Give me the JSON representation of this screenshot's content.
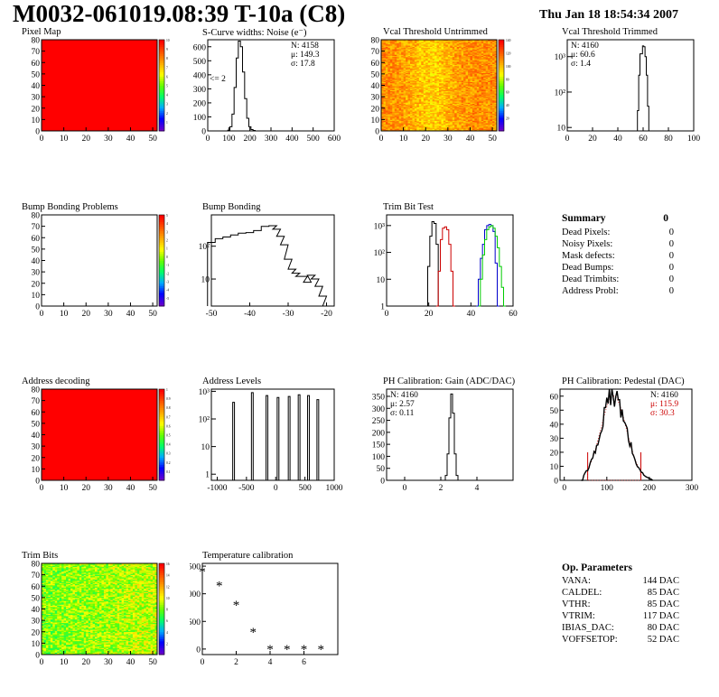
{
  "header": {
    "title": "M0032-061019.08:39 T-10a (C8)",
    "date": "Thu Jan 18 18:54:34 2007"
  },
  "colors": {
    "red": "#ff0000",
    "black": "#000000",
    "dark_red": "#cc0000",
    "blue": "#0000cc",
    "green": "#00cc00"
  },
  "panels": {
    "pixel_map": {
      "title": "Pixel Map"
    },
    "noise": {
      "title": "S-Curve widths: Noise (e⁻)",
      "stats": [
        "N: 4158",
        "μ: 149.3",
        "σ: 17.8"
      ],
      "annotation": "<= 2"
    },
    "vcal_untrimmed": {
      "title": "Vcal Threshold Untrimmed"
    },
    "vcal_trimmed": {
      "title": "Vcal Threshold Trimmed",
      "stats": [
        "N: 4160",
        "μ: 60.6",
        "σ:  1.4"
      ]
    },
    "bump_problems": {
      "title": "Bump Bonding Problems"
    },
    "bump_bonding": {
      "title": "Bump Bonding"
    },
    "trim_bit_test": {
      "title": "Trim Bit Test"
    },
    "address_decoding": {
      "title": "Address decoding"
    },
    "address_levels": {
      "title": "Address Levels"
    },
    "ph_gain": {
      "title": "PH Calibration: Gain (ADC/DAC)",
      "stats": [
        "N: 4160",
        "μ: 2.57",
        "σ: 0.11"
      ]
    },
    "ph_pedestal": {
      "title": "PH Calibration: Pedestal (DAC)",
      "stats": [
        "N: 4160",
        "μ: 115.9",
        "σ: 30.3"
      ]
    },
    "trim_bits": {
      "title": "Trim Bits"
    },
    "temperature": {
      "title": "Temperature calibration"
    }
  },
  "summary": {
    "title": "Summary",
    "value": "0",
    "rows": [
      {
        "label": "Dead Pixels:",
        "value": "0"
      },
      {
        "label": "Noisy Pixels:",
        "value": "0"
      },
      {
        "label": "Mask defects:",
        "value": "0"
      },
      {
        "label": "Dead Bumps:",
        "value": "0"
      },
      {
        "label": "Dead Trimbits:",
        "value": "0"
      },
      {
        "label": "Address Probl:",
        "value": "0"
      }
    ]
  },
  "op_parameters": {
    "title": "Op. Parameters",
    "rows": [
      {
        "label": "VANA:",
        "value": "144 DAC"
      },
      {
        "label": "CALDEL:",
        "value": "85 DAC"
      },
      {
        "label": "VTHR:",
        "value": "85 DAC"
      },
      {
        "label": "VTRIM:",
        "value": "117 DAC"
      },
      {
        "label": "IBIAS_DAC:",
        "value": "80 DAC"
      },
      {
        "label": "VOFFSETOP:",
        "value": "52 DAC"
      }
    ]
  },
  "chart_data": [
    {
      "id": "pixel_map",
      "type": "heatmap",
      "title": "Pixel Map",
      "xlim": [
        0,
        52
      ],
      "ylim": [
        0,
        80
      ],
      "xticks": [
        "0",
        "10",
        "20",
        "30",
        "40",
        "50"
      ],
      "yticks": [
        "0",
        "10",
        "20",
        "30",
        "40",
        "50",
        "60",
        "70",
        "80"
      ],
      "fill": "uniform red",
      "zmax": 10,
      "palette_ticks": [
        "1",
        "2",
        "3",
        "4",
        "5",
        "6",
        "7",
        "8",
        "9",
        "10"
      ]
    },
    {
      "id": "noise",
      "type": "line",
      "title": "S-Curve widths: Noise (e⁻)",
      "xlim": [
        0,
        600
      ],
      "ylim": [
        0,
        650
      ],
      "xticks": [
        "0",
        "100",
        "200",
        "300",
        "400",
        "500",
        "600"
      ],
      "yticks": [
        "0",
        "100",
        "200",
        "300",
        "400",
        "500",
        "600"
      ],
      "x": [
        90,
        100,
        110,
        120,
        130,
        140,
        150,
        160,
        170,
        180,
        190,
        200,
        210,
        220,
        230
      ],
      "y": [
        0,
        5,
        30,
        120,
        310,
        520,
        640,
        600,
        420,
        230,
        90,
        30,
        10,
        3,
        0
      ]
    },
    {
      "id": "vcal_untrimmed",
      "type": "heatmap",
      "title": "Vcal Threshold Untrimmed",
      "xlim": [
        0,
        52
      ],
      "ylim": [
        0,
        80
      ],
      "xticks": [
        "0",
        "10",
        "20",
        "30",
        "40",
        "50"
      ],
      "yticks": [
        "0",
        "10",
        "20",
        "30",
        "40",
        "50",
        "60",
        "70",
        "80"
      ],
      "zrange": [
        0,
        140
      ],
      "palette_ticks": [
        "20",
        "40",
        "60",
        "80",
        "100",
        "120",
        "140"
      ]
    },
    {
      "id": "vcal_trimmed",
      "type": "line",
      "title": "Vcal Threshold Trimmed",
      "xlim": [
        0,
        100
      ],
      "log_y": true,
      "xticks": [
        "0",
        "20",
        "40",
        "60",
        "80",
        "100"
      ],
      "yticks": [
        "10",
        "10²",
        "10³"
      ],
      "x": [
        55,
        56,
        57,
        58,
        59,
        60,
        61,
        62,
        63,
        64,
        65,
        66
      ],
      "y": [
        0,
        30,
        300,
        1200,
        1200,
        2000,
        1900,
        1000,
        300,
        40,
        5,
        0
      ]
    },
    {
      "id": "bump_problems",
      "type": "heatmap",
      "title": "Bump Bonding Problems",
      "xlim": [
        0,
        52
      ],
      "ylim": [
        0,
        80
      ],
      "xticks": [
        "0",
        "10",
        "20",
        "30",
        "40",
        "50"
      ],
      "yticks": [
        "0",
        "10",
        "20",
        "30",
        "40",
        "50",
        "60",
        "70",
        "80"
      ],
      "fill": "empty",
      "zrange": [
        -5,
        5
      ],
      "palette_ticks": [
        "-5",
        "-4",
        "-3",
        "-2",
        "-1",
        "0",
        "1",
        "2",
        "3",
        "4",
        "5"
      ]
    },
    {
      "id": "bump_bonding",
      "type": "line",
      "title": "Bump Bonding",
      "xlim": [
        -50,
        -18
      ],
      "log_y": true,
      "xticks": [
        "-50",
        "-40",
        "-30",
        "-20"
      ],
      "yticks": [
        "10",
        "10²"
      ],
      "x": [
        -50,
        -48,
        -46,
        -44,
        -42,
        -40,
        -38,
        -36,
        -34,
        -33,
        -32,
        -31,
        -30,
        -29,
        -28,
        -27,
        -26,
        -25,
        -24,
        -23,
        -22,
        -21,
        -20
      ],
      "y": [
        130,
        170,
        190,
        220,
        250,
        260,
        300,
        400,
        420,
        330,
        200,
        110,
        40,
        20,
        15,
        12,
        12,
        8,
        13,
        10,
        6,
        3,
        1
      ]
    },
    {
      "id": "trim_bit_test",
      "type": "line",
      "title": "Trim Bit Test",
      "xlim": [
        0,
        60
      ],
      "log_y": true,
      "xticks": [
        "0",
        "20",
        "40",
        "60"
      ],
      "yticks": [
        "1",
        "10",
        "10²",
        "10³"
      ],
      "series": [
        {
          "color": "#000000",
          "x": [
            19,
            20,
            21,
            22,
            23,
            24,
            25
          ],
          "y": [
            1,
            30,
            400,
            1400,
            1200,
            200,
            1
          ]
        },
        {
          "color": "#cc0000",
          "x": [
            24,
            25,
            26,
            27,
            28,
            29,
            30,
            31,
            32
          ],
          "y": [
            1,
            20,
            300,
            800,
            900,
            700,
            200,
            20,
            1
          ]
        },
        {
          "color": "#0000cc",
          "x": [
            43,
            44,
            45,
            46,
            47,
            48,
            49,
            50,
            51,
            52,
            53
          ],
          "y": [
            1,
            10,
            60,
            200,
            700,
            1000,
            1100,
            1000,
            600,
            40,
            1
          ]
        },
        {
          "color": "#00cc00",
          "x": [
            44,
            45,
            46,
            47,
            48,
            49,
            50,
            51,
            52,
            53,
            54,
            55,
            56
          ],
          "y": [
            1,
            10,
            80,
            300,
            700,
            900,
            1000,
            800,
            400,
            150,
            30,
            5,
            1
          ]
        }
      ]
    },
    {
      "id": "address_decoding",
      "type": "heatmap",
      "title": "Address decoding",
      "xlim": [
        0,
        52
      ],
      "ylim": [
        0,
        80
      ],
      "xticks": [
        "0",
        "10",
        "20",
        "30",
        "40",
        "50"
      ],
      "yticks": [
        "0",
        "10",
        "20",
        "30",
        "40",
        "50",
        "60",
        "70",
        "80"
      ],
      "fill": "uniform red",
      "zmax": 1,
      "palette_ticks": [
        "0.1",
        "0.2",
        "0.3",
        "0.4",
        "0.5",
        "0.6",
        "0.7",
        "0.8",
        "0.9",
        "1"
      ]
    },
    {
      "id": "address_levels",
      "type": "bar",
      "title": "Address Levels",
      "xlim": [
        -1100,
        1000
      ],
      "log_y": true,
      "xticks": [
        "-1000",
        "-500",
        "0",
        "500",
        "1000"
      ],
      "yticks": [
        "1",
        "10",
        "10²",
        "10³"
      ],
      "x": [
        -720,
        -400,
        -150,
        40,
        230,
        400,
        560,
        720
      ],
      "y": [
        400,
        900,
        700,
        600,
        650,
        750,
        700,
        500
      ]
    },
    {
      "id": "ph_gain",
      "type": "line",
      "title": "PH Calibration: Gain (ADC/DAC)",
      "xlim": [
        -1,
        6
      ],
      "ylim": [
        0,
        380
      ],
      "xticks": [
        "0",
        "2",
        "4"
      ],
      "yticks": [
        "0",
        "50",
        "100",
        "150",
        "200",
        "250",
        "300",
        "350"
      ],
      "x": [
        2.2,
        2.3,
        2.4,
        2.5,
        2.6,
        2.7,
        2.8,
        2.9,
        3.0
      ],
      "y": [
        0,
        20,
        110,
        260,
        360,
        280,
        110,
        20,
        0
      ]
    },
    {
      "id": "ph_pedestal",
      "type": "line",
      "title": "PH Calibration: Pedestal (DAC)",
      "xlim": [
        -10,
        300
      ],
      "ylim": [
        0,
        65
      ],
      "xticks": [
        "0",
        "100",
        "200",
        "300"
      ],
      "yticks": [
        "0",
        "10",
        "20",
        "30",
        "40",
        "50",
        "60"
      ],
      "x": [
        40,
        50,
        60,
        70,
        80,
        90,
        100,
        110,
        120,
        130,
        140,
        150,
        160,
        170,
        180,
        190,
        200,
        210
      ],
      "y": [
        0,
        3,
        8,
        14,
        22,
        32,
        42,
        54,
        60,
        55,
        48,
        40,
        34,
        26,
        16,
        8,
        3,
        0
      ],
      "fit_color": "#cc0000",
      "fit_mean": 115.9,
      "fit_sigma": 30.3,
      "fit_range": [
        55,
        180
      ]
    },
    {
      "id": "trim_bits",
      "type": "heatmap",
      "title": "Trim Bits",
      "xlim": [
        0,
        52
      ],
      "ylim": [
        0,
        80
      ],
      "xticks": [
        "0",
        "10",
        "20",
        "30",
        "40",
        "50"
      ],
      "yticks": [
        "0",
        "10",
        "20",
        "30",
        "40",
        "50",
        "60",
        "70",
        "80"
      ],
      "zrange": [
        0,
        16
      ],
      "palette_ticks": [
        "2",
        "4",
        "6",
        "8",
        "10",
        "12",
        "14",
        "16"
      ]
    },
    {
      "id": "temperature",
      "type": "scatter",
      "title": "Temperature calibration",
      "xlim": [
        0,
        8
      ],
      "ylim": [
        -100,
        1550
      ],
      "xticks": [
        "0",
        "2",
        "4",
        "6"
      ],
      "yticks": [
        "0",
        "500",
        "1000",
        "1500"
      ],
      "x": [
        0,
        1,
        2,
        3,
        4,
        5,
        6,
        7
      ],
      "y": [
        1400,
        1150,
        800,
        310,
        0,
        0,
        0,
        0
      ]
    }
  ]
}
